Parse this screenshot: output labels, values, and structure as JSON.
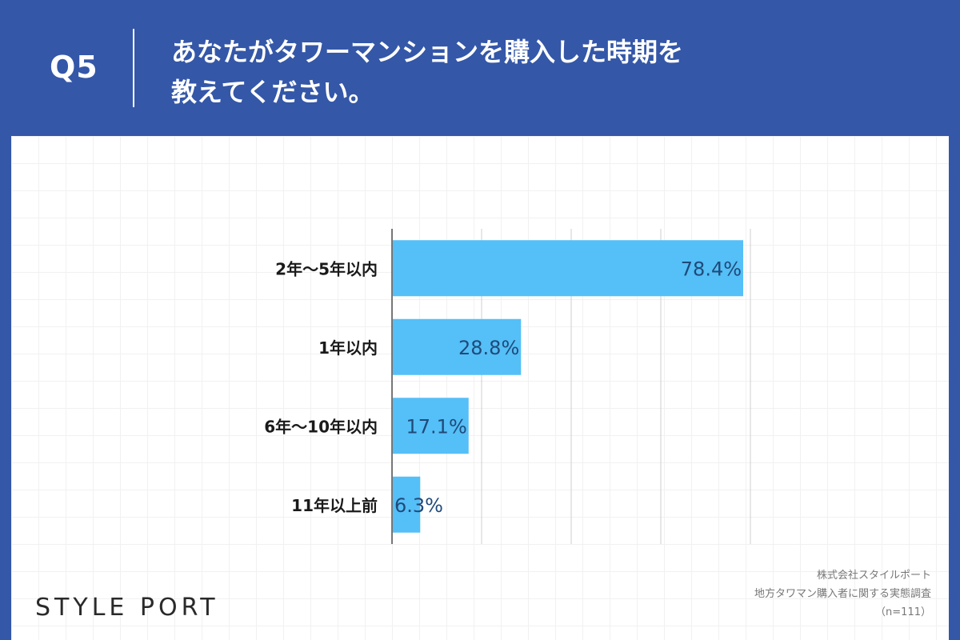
{
  "header": {
    "question_number": "Q5",
    "question_line1": "あなたがタワーマンションを購入した時期を",
    "question_line2": "教えてください。"
  },
  "chart_data": {
    "type": "bar",
    "orientation": "horizontal",
    "categories": [
      "2年〜5年以内",
      "1年以内",
      "6年〜10年以内",
      "11年以上前"
    ],
    "values": [
      78.4,
      28.8,
      17.1,
      6.3
    ],
    "value_labels": [
      "78.4%",
      "28.8%",
      "17.1%",
      "6.3%"
    ],
    "unit": "%",
    "xlim": [
      0,
      80
    ],
    "gridlines": [
      0,
      20,
      40,
      60,
      80
    ],
    "bar_color": "#55bff7",
    "label_color": "#1f4a7a"
  },
  "footer": {
    "logo": "STYLE PORT",
    "credit_line1": "株式会社スタイルポート",
    "credit_line2": "地方タワマン購入者に関する実態調査",
    "credit_line3": "（n=111）"
  }
}
